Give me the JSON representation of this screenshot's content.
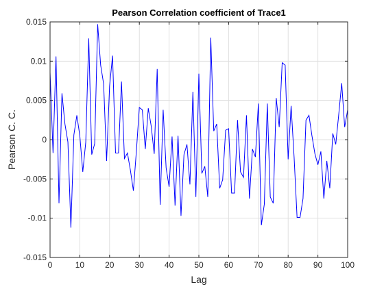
{
  "chart_data": {
    "type": "line",
    "title": "Pearson Correlation coefficient of Trace1",
    "xlabel": "Lag",
    "ylabel": "Pearson C. C.",
    "xlim": [
      0,
      100
    ],
    "ylim": [
      -0.015,
      0.015
    ],
    "grid": true,
    "line_color": "#0000ff",
    "x_ticks": [
      0,
      10,
      20,
      30,
      40,
      50,
      60,
      70,
      80,
      90,
      100
    ],
    "x_tick_labels": [
      "0",
      "10",
      "20",
      "30",
      "40",
      "50",
      "60",
      "70",
      "80",
      "90",
      "100"
    ],
    "y_ticks": [
      -0.015,
      -0.01,
      -0.005,
      0,
      0.005,
      0.01,
      0.015
    ],
    "y_tick_labels": [
      "-0.015",
      "-0.01",
      "-0.005",
      "0",
      "0.005",
      "0.01",
      "0.015"
    ],
    "series": [
      {
        "x": [
          0,
          1,
          2,
          3,
          4,
          5,
          6,
          7,
          8,
          9,
          10,
          11,
          12,
          13,
          14,
          15,
          16,
          17,
          18,
          19,
          20,
          21,
          22,
          23,
          24,
          25,
          26,
          27,
          28,
          29,
          30,
          31,
          32,
          33,
          34,
          35,
          36,
          37,
          38,
          39,
          40,
          41,
          42,
          43,
          44,
          45,
          46,
          47,
          48,
          49,
          50,
          51,
          52,
          53,
          54,
          55,
          56,
          57,
          58,
          59,
          60,
          61,
          62,
          63,
          64,
          65,
          66,
          67,
          68,
          69,
          70,
          71,
          72,
          73,
          74,
          75,
          76,
          77,
          78,
          79,
          80,
          81,
          82,
          83,
          84,
          85,
          86,
          87,
          88,
          89,
          90,
          91,
          92,
          93,
          94,
          95,
          96,
          97,
          98,
          99,
          100
        ],
        "values": [
          0.0086,
          -0.0017,
          0.0106,
          -0.0081,
          0.0059,
          0.002,
          -0.0003,
          -0.0112,
          0.0006,
          0.0031,
          0.0005,
          -0.0041,
          -0.0003,
          0.0129,
          -0.0019,
          -0.0005,
          0.0147,
          0.0095,
          0.0071,
          -0.0027,
          0.0068,
          0.0107,
          -0.0017,
          -0.0017,
          0.0074,
          -0.0024,
          -0.0017,
          -0.0039,
          -0.0065,
          -0.0015,
          0.0041,
          0.0038,
          -0.0012,
          0.004,
          0.0017,
          -0.0018,
          0.009,
          -0.0083,
          0.0038,
          -0.0036,
          -0.006,
          0.0004,
          -0.0084,
          0.0005,
          -0.0097,
          -0.0019,
          -0.0006,
          -0.0057,
          0.0061,
          -0.0073,
          0.0084,
          -0.0043,
          -0.0034,
          -0.0073,
          0.013,
          0.0011,
          0.002,
          -0.0062,
          -0.0051,
          0.0012,
          0.0014,
          -0.0068,
          -0.0068,
          0.0025,
          -0.0041,
          -0.0048,
          0.0031,
          -0.0075,
          -0.0012,
          -0.0022,
          0.0046,
          -0.0109,
          -0.0082,
          0.0046,
          -0.0073,
          -0.0081,
          0.0053,
          0.0016,
          0.0098,
          0.0095,
          -0.0025,
          0.0043,
          -0.0022,
          -0.0099,
          -0.0099,
          -0.0075,
          0.0025,
          0.0031,
          0.0005,
          -0.0018,
          -0.0032,
          -0.0015,
          -0.0075,
          -0.0027,
          -0.0062,
          0.0008,
          -0.0006,
          0.0032,
          0.0072,
          0.0016,
          0.0038
        ]
      }
    ]
  }
}
